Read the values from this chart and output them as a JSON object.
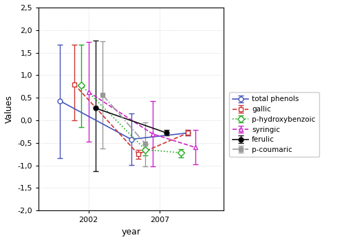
{
  "xlabel": "year",
  "ylabel": "Values",
  "xlim": [
    1998.5,
    2011.5
  ],
  "ylim": [
    -2.0,
    2.5
  ],
  "yticks": [
    -2.0,
    -1.5,
    -1.0,
    -0.5,
    0.0,
    0.5,
    1.0,
    1.5,
    2.0,
    2.5
  ],
  "xtick_positions": [
    2002,
    2007
  ],
  "series": [
    {
      "key": "total_phenols",
      "label": "total phenols",
      "color": "#4455bb",
      "linestyle": "-",
      "marker": "o",
      "markerfacecolor": "white",
      "markersize": 5,
      "x": [
        2000,
        2005,
        2009
      ],
      "y": [
        0.43,
        -0.42,
        -0.28
      ],
      "yerr_lo": [
        1.27,
        0.57,
        0.06
      ],
      "yerr_hi": [
        1.25,
        0.57,
        0.06
      ]
    },
    {
      "key": "gallic",
      "label": "gallic",
      "color": "#cc3333",
      "linestyle": "--",
      "marker": "s",
      "markerfacecolor": "white",
      "markersize": 5,
      "x": [
        2001,
        2005.5,
        2009
      ],
      "y": [
        0.8,
        -0.75,
        -0.28
      ],
      "yerr_lo": [
        0.8,
        0.1,
        0.06
      ],
      "yerr_hi": [
        0.88,
        0.1,
        0.06
      ]
    },
    {
      "key": "p_hydroxybenzoic",
      "label": "p-hydroxybenzoic",
      "color": "#22aa22",
      "linestyle": ":",
      "marker": "D",
      "markerfacecolor": "white",
      "markersize": 5,
      "x": [
        2001.5,
        2006,
        2008.5
      ],
      "y": [
        0.78,
        -0.65,
        -0.72
      ],
      "yerr_lo": [
        0.93,
        0.13,
        0.1
      ],
      "yerr_hi": [
        0.9,
        0.12,
        0.08
      ]
    },
    {
      "key": "syringic",
      "label": "syringic",
      "color": "#cc22cc",
      "linestyle": "--",
      "marker": "^",
      "markerfacecolor": "white",
      "markersize": 5,
      "x": [
        2002,
        2006.5,
        2009.5
      ],
      "y": [
        0.63,
        -0.3,
        -0.6
      ],
      "yerr_lo": [
        1.1,
        0.72,
        0.38
      ],
      "yerr_hi": [
        1.1,
        0.72,
        0.38
      ]
    },
    {
      "key": "ferulic",
      "label": "ferulic",
      "color": "#111111",
      "linestyle": "-",
      "marker": "o",
      "markerfacecolor": "black",
      "markersize": 5,
      "x": [
        2002.5,
        2007.5
      ],
      "y": [
        0.27,
        -0.28
      ],
      "yerr_lo": [
        1.4,
        0.06
      ],
      "yerr_hi": [
        1.5,
        0.06
      ]
    },
    {
      "key": "p_coumaric",
      "label": "p-coumaric",
      "color": "#999999",
      "linestyle": "-.",
      "marker": "s",
      "markerfacecolor": "#999999",
      "markersize": 5,
      "x": [
        2003,
        2006
      ],
      "y": [
        0.56,
        -0.52
      ],
      "yerr_lo": [
        1.18,
        0.5
      ],
      "yerr_hi": [
        1.2,
        0.48
      ]
    }
  ]
}
